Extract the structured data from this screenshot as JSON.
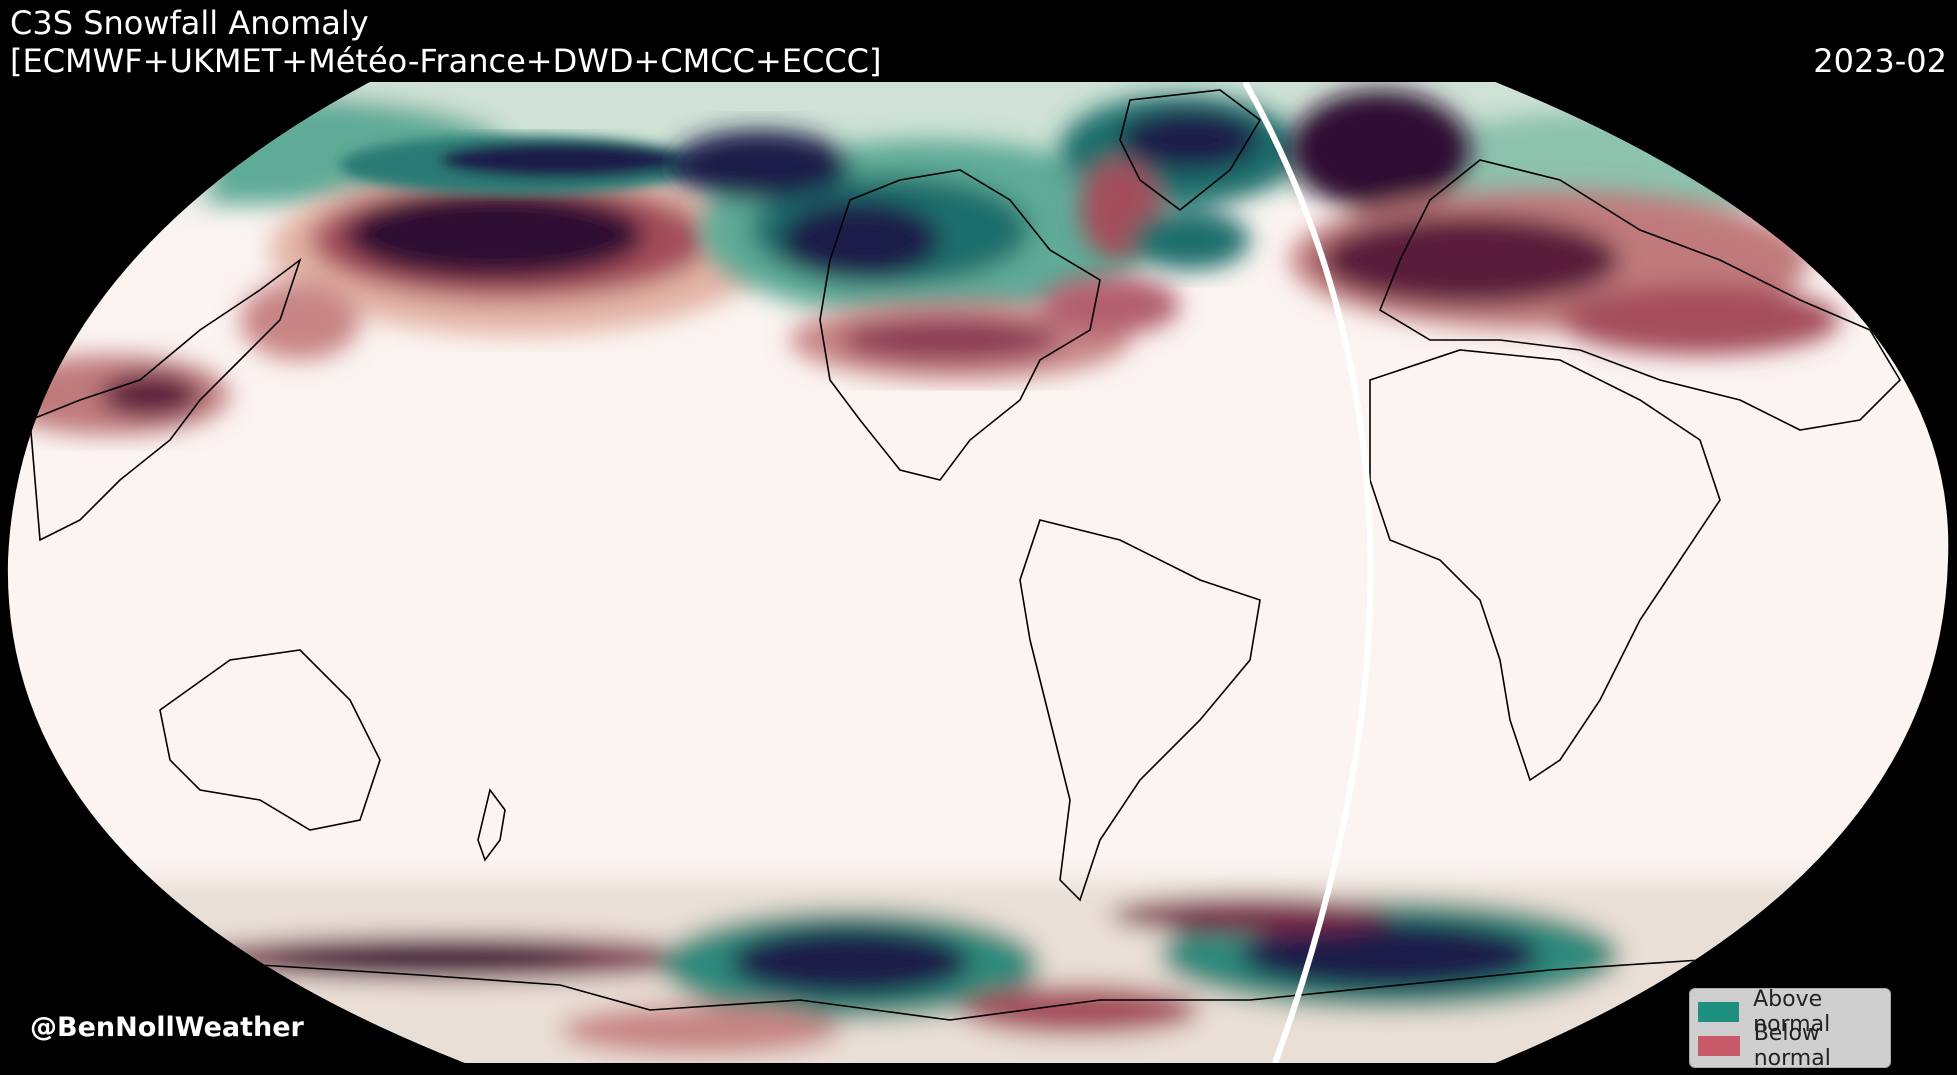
{
  "header": {
    "title_line1": "C3S Snowfall Anomaly",
    "title_line2": "[ECMWF+UKMET+Météo-France+DWD+CMCC+ECCC]",
    "date": "2023-02"
  },
  "credit": "@BenNollWeather",
  "legend": {
    "items": [
      {
        "label": "Above normal",
        "color": "#1f8f7f"
      },
      {
        "label": "Below normal",
        "color": "#c85a68"
      }
    ]
  },
  "colors": {
    "background": "#000000",
    "ocean_neutral": "#fbf4f1",
    "above_light": "#d8e7dc",
    "above_mid": "#3a9a86",
    "above_dark": "#1b1f4a",
    "below_light": "#e9c2b5",
    "below_mid": "#a44d5c",
    "below_dark": "#2d1030",
    "coastline": "#000000"
  }
}
